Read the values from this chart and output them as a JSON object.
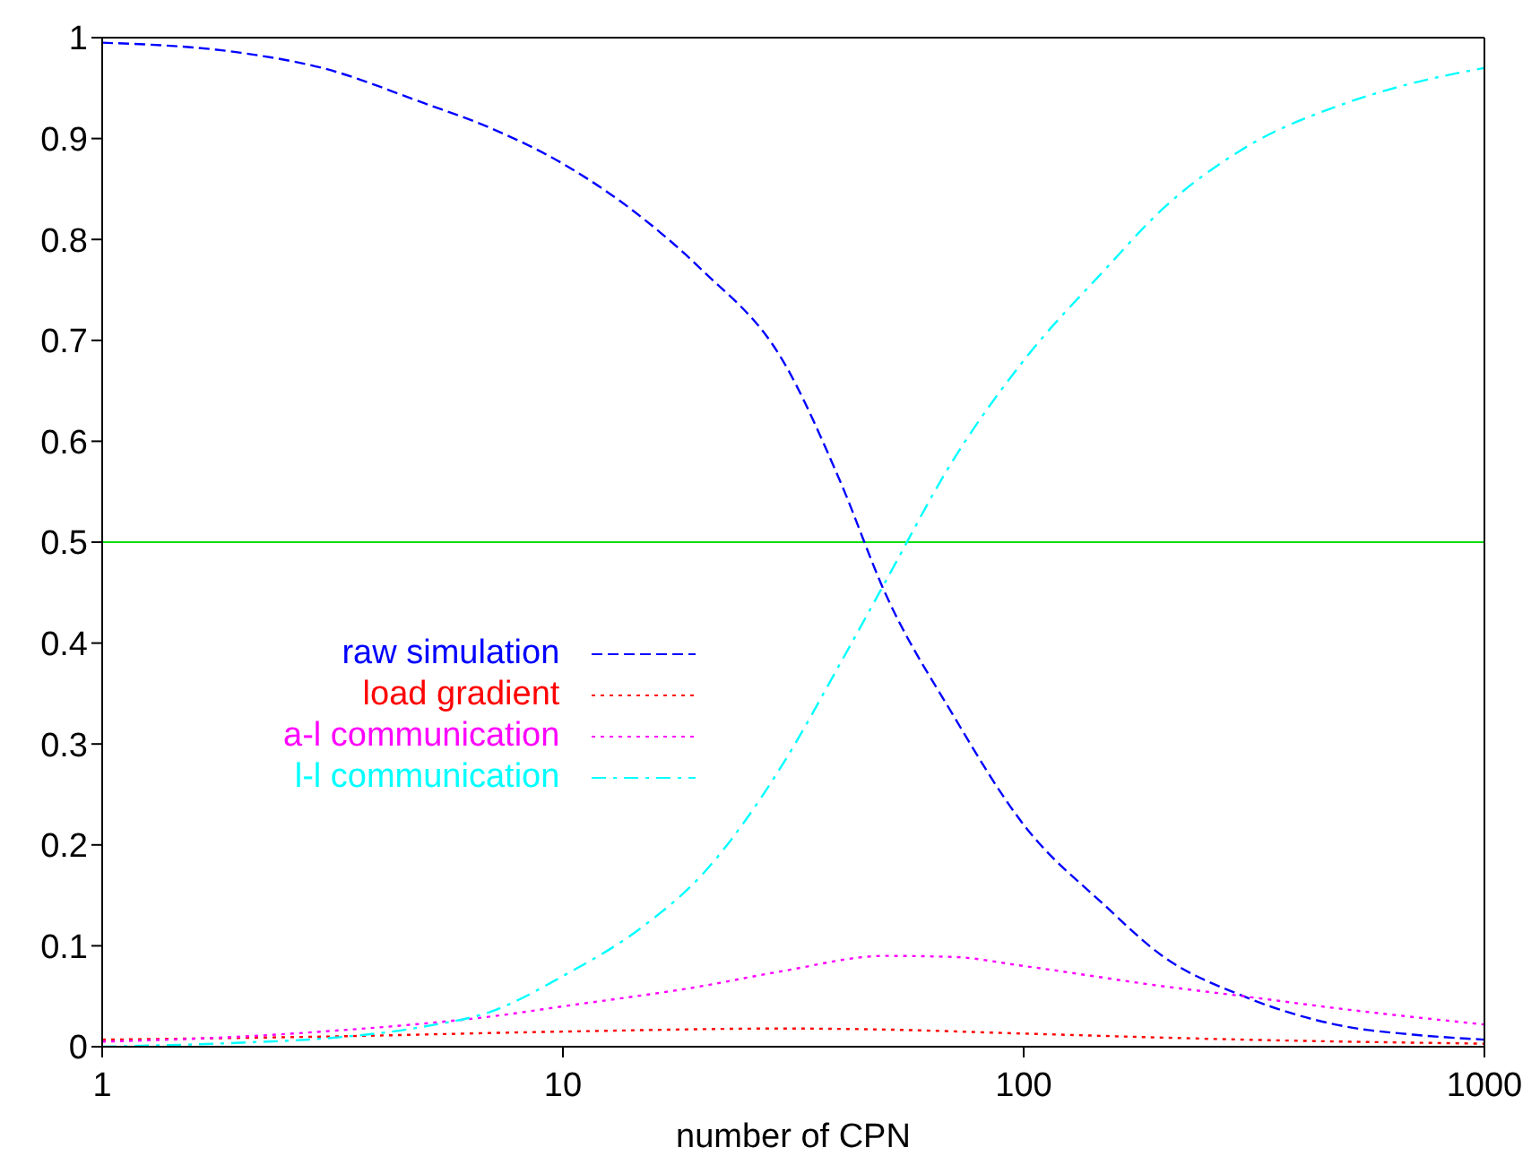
{
  "chart_data": {
    "type": "line",
    "xlabel": "number of CPN",
    "log": "x",
    "xlim": [
      1,
      1000
    ],
    "xticks": [
      1,
      10,
      100,
      1000
    ],
    "ylim": [
      0,
      1
    ],
    "yticks": [
      0,
      0.1,
      0.2,
      0.3,
      0.4,
      0.5,
      0.6,
      0.7,
      0.8,
      0.9,
      1
    ],
    "legend": "left",
    "marker": "none",
    "ref_lines": [
      {
        "axis": "y",
        "value": 0.5,
        "color": "#00dd00",
        "line_style": "solid"
      }
    ],
    "series": [
      {
        "name": "raw simulation",
        "color": "#0000ff",
        "line_style": "dashed",
        "x": [
          1,
          2,
          3,
          5,
          7,
          10,
          15,
          20,
          30,
          40,
          50,
          70,
          100,
          150,
          200,
          300,
          500,
          700,
          1000
        ],
        "values": [
          0.995,
          0.985,
          0.97,
          0.935,
          0.91,
          0.875,
          0.82,
          0.77,
          0.68,
          0.56,
          0.45,
          0.33,
          0.22,
          0.14,
          0.09,
          0.05,
          0.02,
          0.012,
          0.007
        ]
      },
      {
        "name": "load gradient",
        "color": "#ff0000",
        "line_style": "dotted",
        "x": [
          1,
          3,
          10,
          30,
          50,
          100,
          300,
          1000
        ],
        "values": [
          0.007,
          0.01,
          0.015,
          0.018,
          0.017,
          0.013,
          0.007,
          0.003
        ]
      },
      {
        "name": "a-l communication",
        "color": "#ff00ff",
        "line_style": "dotted",
        "x": [
          1,
          2,
          3,
          5,
          7,
          10,
          20,
          30,
          50,
          70,
          100,
          200,
          300,
          500,
          1000
        ],
        "values": [
          0.005,
          0.01,
          0.015,
          0.023,
          0.03,
          0.04,
          0.06,
          0.075,
          0.09,
          0.089,
          0.08,
          0.06,
          0.05,
          0.037,
          0.022
        ]
      },
      {
        "name": "l-l communication",
        "color": "#00ffff",
        "line_style": "dashed",
        "x": [
          1,
          2,
          3,
          5,
          7,
          10,
          15,
          20,
          30,
          40,
          50,
          70,
          100,
          150,
          200,
          300,
          500,
          700,
          1000
        ],
        "values": [
          0.0,
          0.004,
          0.008,
          0.02,
          0.035,
          0.07,
          0.12,
          0.17,
          0.28,
          0.38,
          0.46,
          0.58,
          0.68,
          0.77,
          0.83,
          0.89,
          0.935,
          0.955,
          0.97
        ]
      }
    ]
  }
}
